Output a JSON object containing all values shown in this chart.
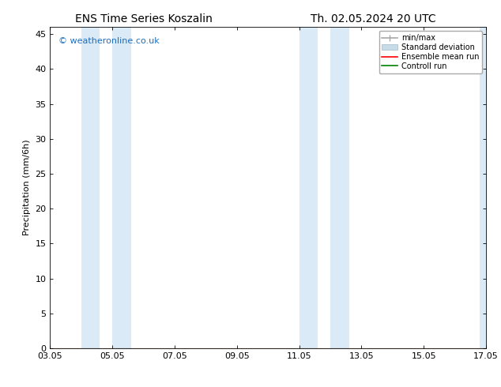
{
  "title_left": "ENS Time Series Koszalin",
  "title_right": "Th. 02.05.2024 20 UTC",
  "ylabel": "Precipitation (mm/6h)",
  "bg_color": "#ffffff",
  "plot_bg_color": "#ffffff",
  "watermark": "© weatheronline.co.uk",
  "watermark_color": "#1a6ebd",
  "xlim_start": 0,
  "xlim_end": 14,
  "ylim": [
    0,
    46
  ],
  "yticks": [
    0,
    5,
    10,
    15,
    20,
    25,
    30,
    35,
    40,
    45
  ],
  "xtick_labels": [
    "03.05",
    "05.05",
    "07.05",
    "09.05",
    "11.05",
    "13.05",
    "15.05",
    "17.05"
  ],
  "xtick_positions": [
    0,
    2,
    4,
    6,
    8,
    10,
    12,
    14
  ],
  "shade_bands": [
    {
      "xmin": 1.0,
      "xmax": 1.6,
      "color": "#daeaf7"
    },
    {
      "xmin": 2.0,
      "xmax": 2.6,
      "color": "#daeaf7"
    },
    {
      "xmin": 8.0,
      "xmax": 8.6,
      "color": "#daeaf7"
    },
    {
      "xmin": 9.0,
      "xmax": 9.6,
      "color": "#daeaf7"
    },
    {
      "xmin": 13.8,
      "xmax": 14.2,
      "color": "#daeaf7"
    }
  ],
  "legend_entries": [
    {
      "label": "min/max",
      "color": "#a8a8a8"
    },
    {
      "label": "Standard deviation",
      "color": "#c8dce8"
    },
    {
      "label": "Ensemble mean run",
      "color": "#ff0000"
    },
    {
      "label": "Controll run",
      "color": "#008000"
    }
  ],
  "font_family": "DejaVu Sans",
  "font_size_title": 10,
  "font_size_ticks": 8,
  "font_size_ylabel": 8,
  "font_size_legend": 7,
  "font_size_watermark": 8,
  "tick_color": "#000000",
  "spine_color": "#000000"
}
